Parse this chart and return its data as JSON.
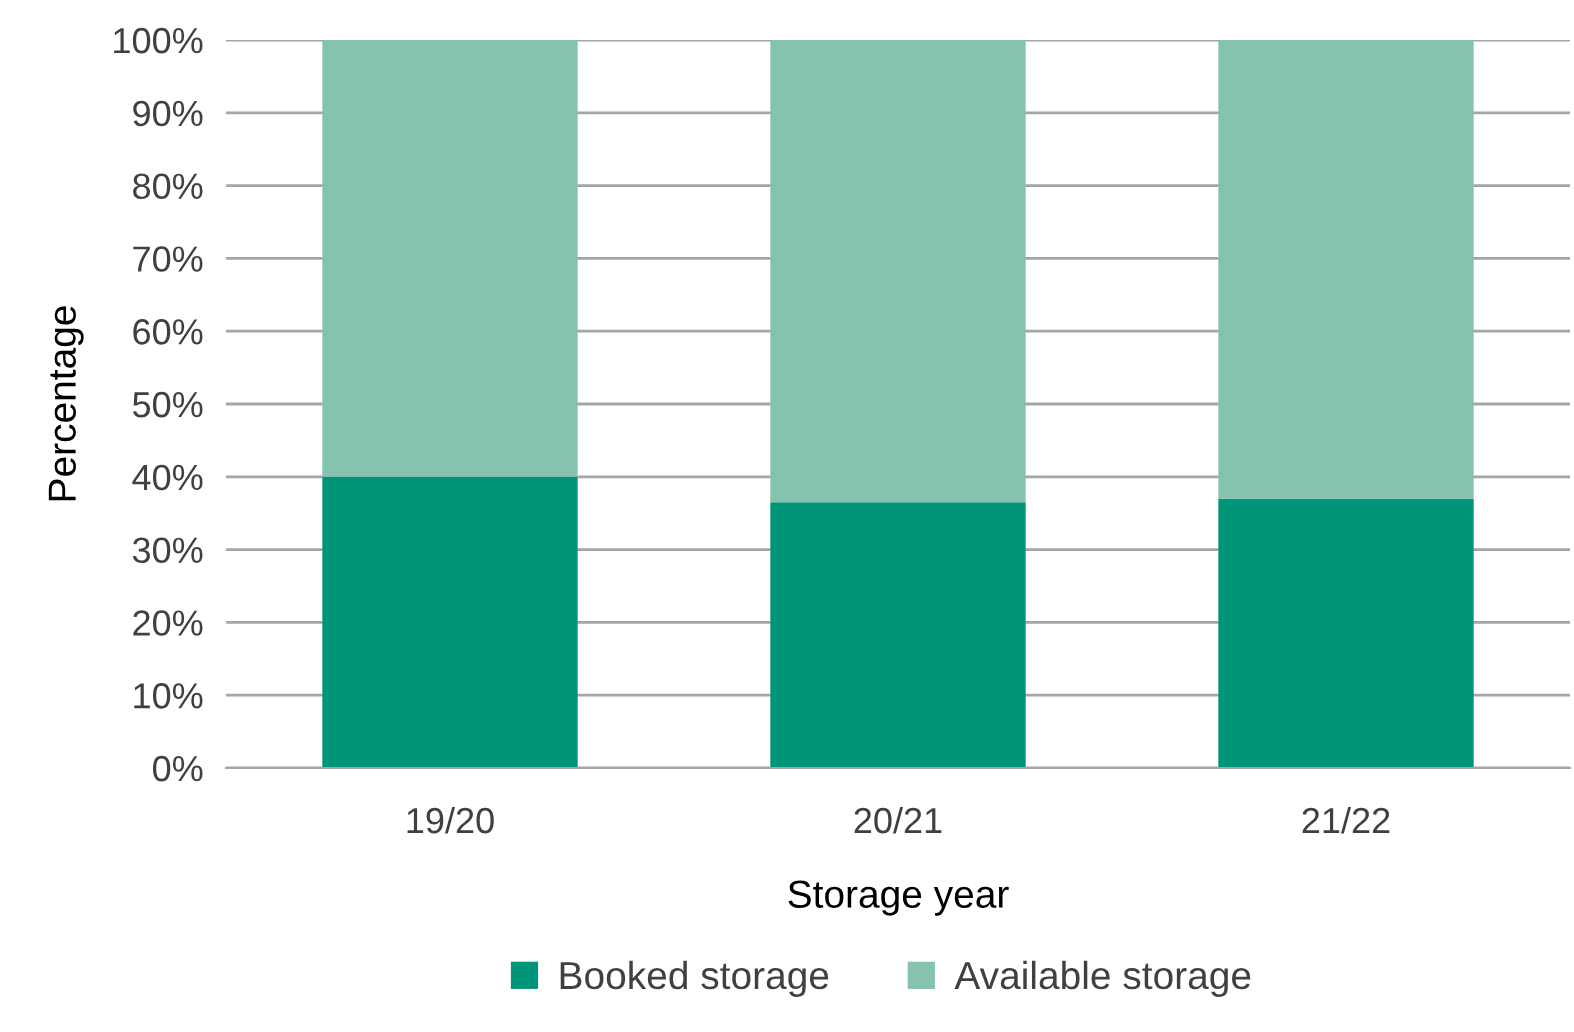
{
  "chart_data": {
    "type": "bar",
    "stacked": true,
    "xlabel": "Storage year",
    "ylabel": "Percentage",
    "categories": [
      "19/20",
      "20/21",
      "21/22"
    ],
    "series": [
      {
        "name": "Booked storage",
        "color": "#009479",
        "values": [
          40,
          36.5,
          37
        ]
      },
      {
        "name": "Available storage",
        "color": "#86c2b0",
        "values": [
          60,
          63.5,
          63
        ]
      }
    ],
    "ylim": [
      0,
      100
    ],
    "yticks": [
      {
        "value": 0,
        "label": "0%"
      },
      {
        "value": 10,
        "label": "10%"
      },
      {
        "value": 20,
        "label": "20%"
      },
      {
        "value": 30,
        "label": "30%"
      },
      {
        "value": 40,
        "label": "40%"
      },
      {
        "value": 50,
        "label": "50%"
      },
      {
        "value": 60,
        "label": "60%"
      },
      {
        "value": 70,
        "label": "70%"
      },
      {
        "value": 80,
        "label": "80%"
      },
      {
        "value": 90,
        "label": "90%"
      },
      {
        "value": 100,
        "label": "100%"
      }
    ],
    "grid": "y",
    "legend": "bottom"
  }
}
